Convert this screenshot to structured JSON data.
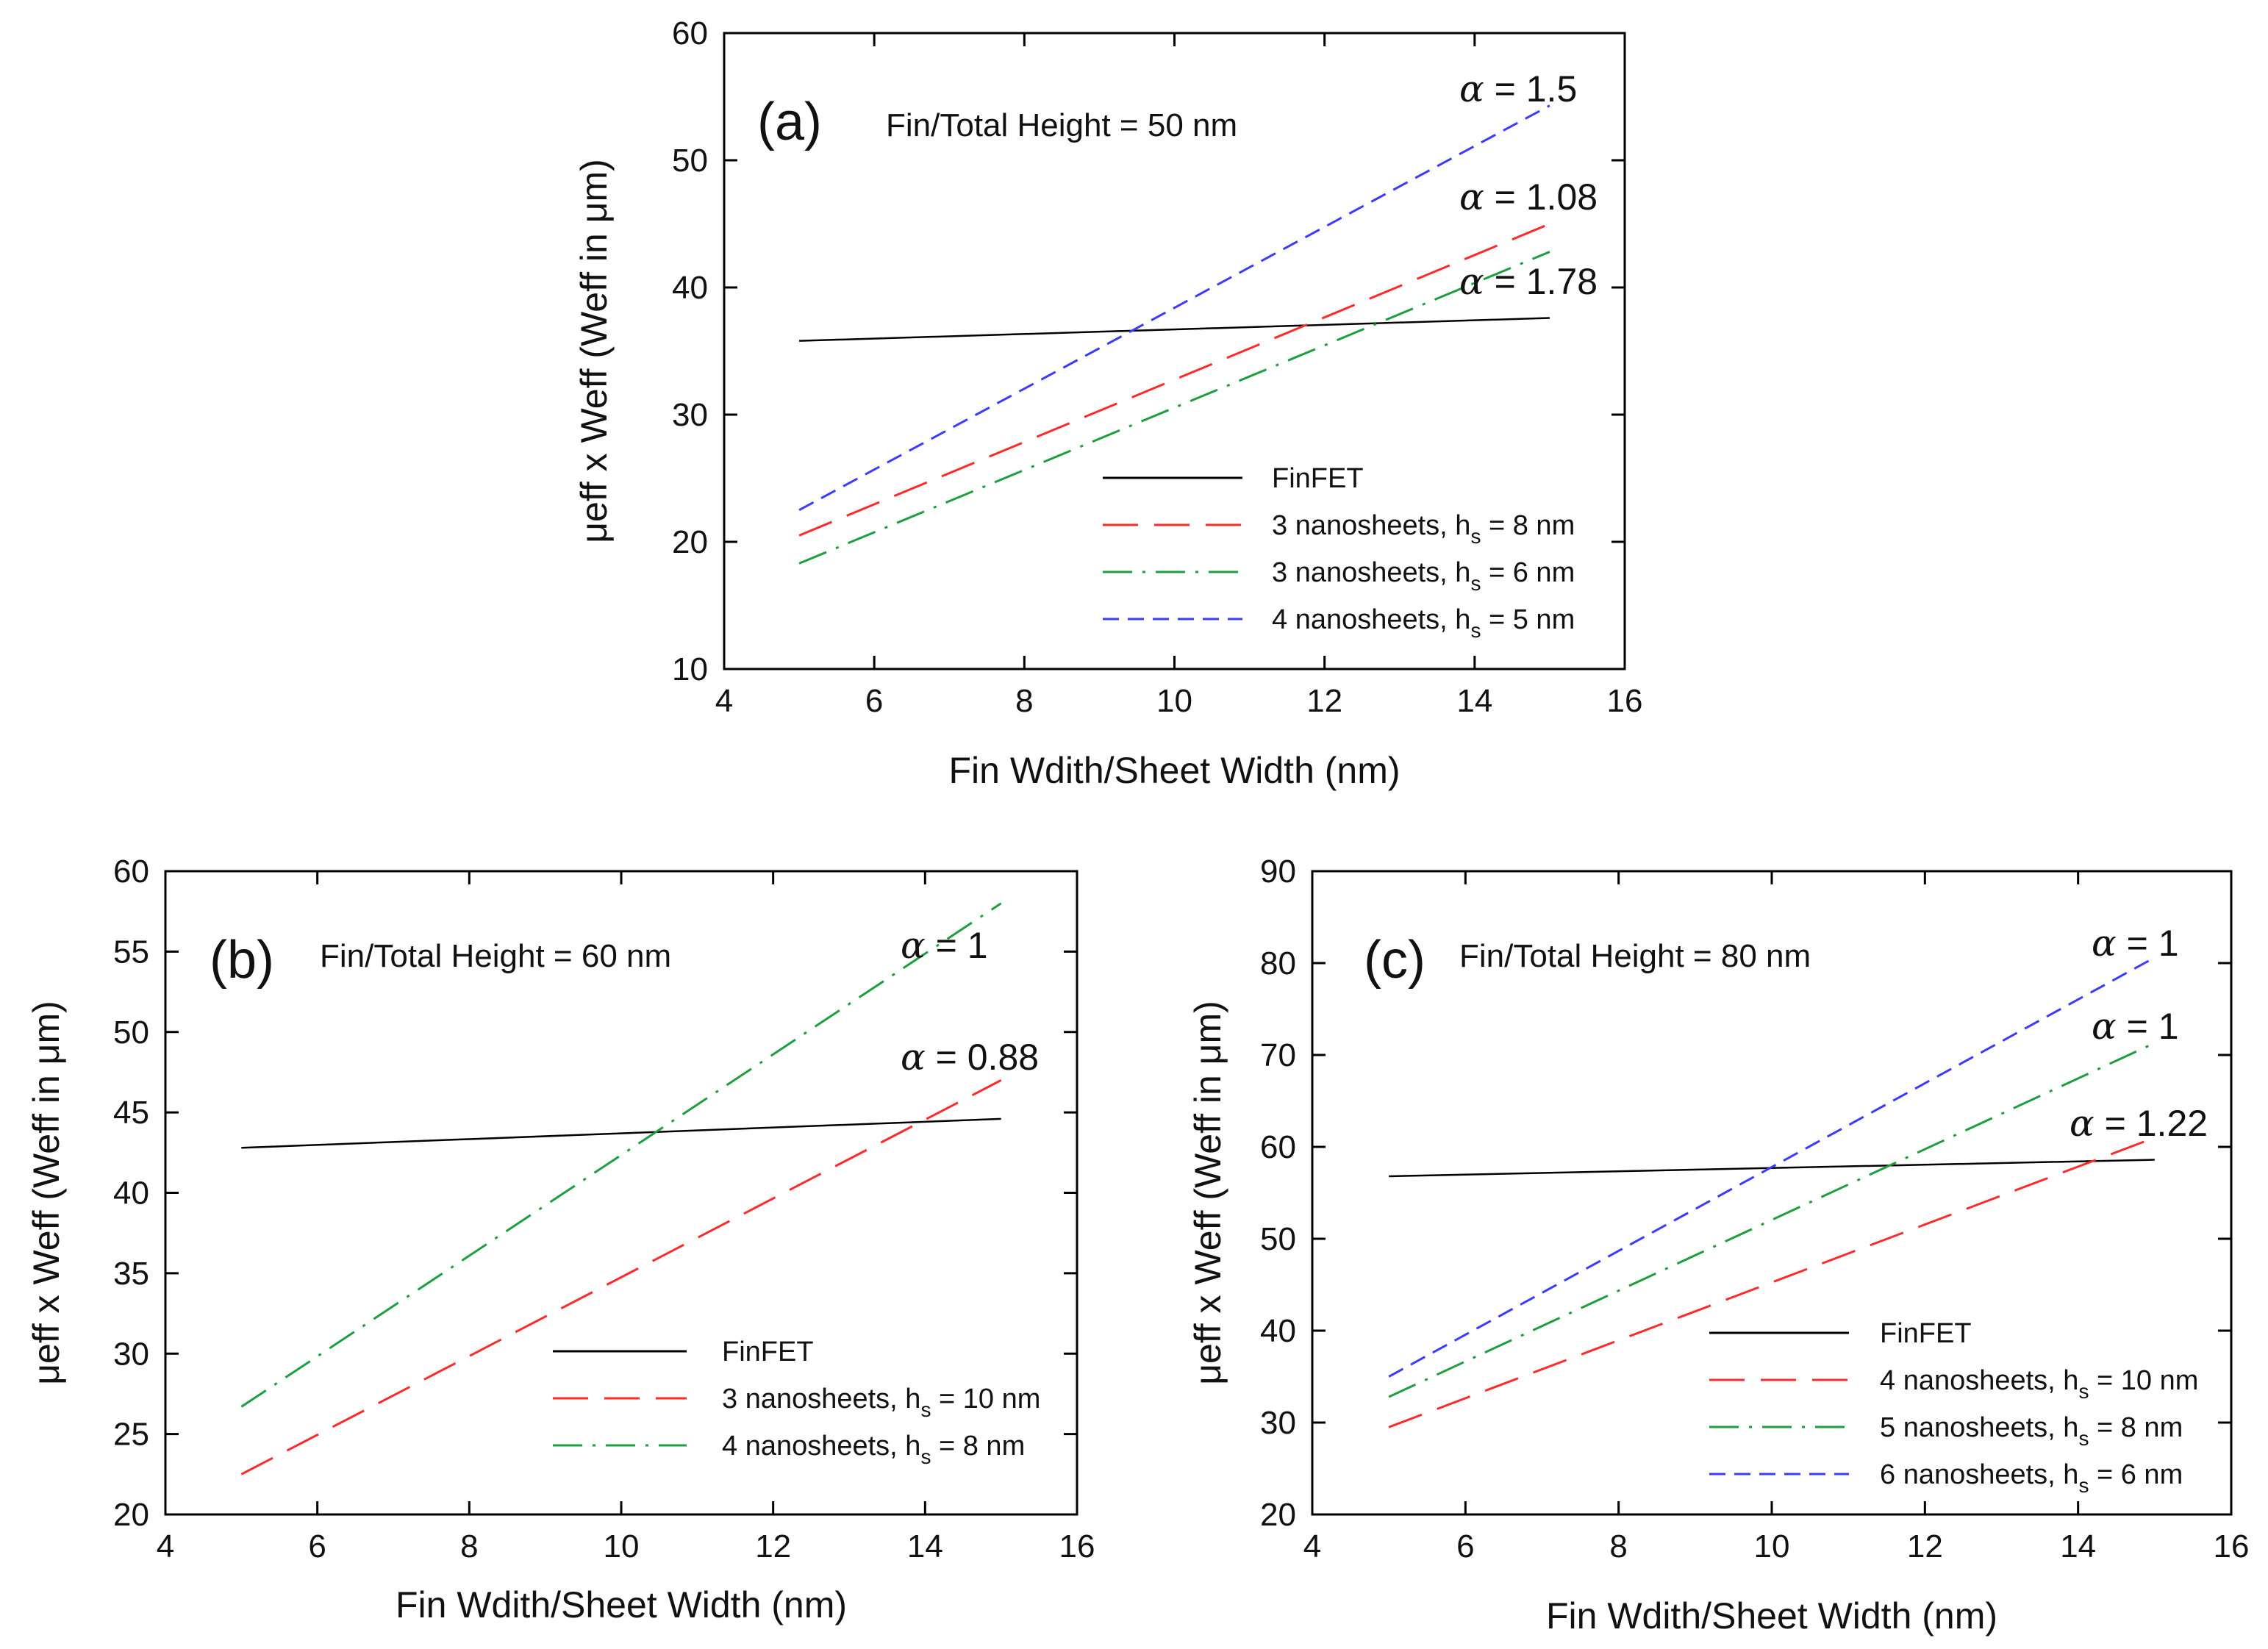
{
  "colors": {
    "finfet": "#000000",
    "red": "#ff2a2a",
    "green": "#1e9e3e",
    "blue": "#3b3bff",
    "axis": "#000000"
  },
  "chart_data": [
    {
      "type": "line",
      "panel": "(a)",
      "height_label": "Fin/Total Height = 50 nm",
      "xlabel": "Fin Wdith/Sheet Width (nm)",
      "ylabel": "μeff x Weff (Weff in μm)",
      "xlim": [
        4,
        16
      ],
      "ylim": [
        10,
        60
      ],
      "xticks": [
        4,
        6,
        8,
        10,
        12,
        14,
        16
      ],
      "yticks": [
        10,
        20,
        30,
        40,
        50,
        60
      ],
      "grid": false,
      "legend_position": "bottom-right",
      "series": [
        {
          "key": "finfet",
          "name": "FinFET",
          "x": [
            5,
            15
          ],
          "y": [
            35.8,
            37.6
          ],
          "color_key": "finfet",
          "dash": "solid"
        },
        {
          "key": "s2",
          "name": "3 nanosheets, h",
          "sub": "s",
          "name_tail": " = 8 nm",
          "x": [
            5,
            15
          ],
          "y": [
            20.5,
            45.0
          ],
          "color_key": "red",
          "dash": "long"
        },
        {
          "key": "s3",
          "name": "3 nanosheets, h",
          "sub": "s",
          "name_tail": " = 6 nm",
          "x": [
            5,
            15
          ],
          "y": [
            18.3,
            42.8
          ],
          "color_key": "green",
          "dash": "longdot"
        },
        {
          "key": "s4",
          "name": "4 nanosheets, h",
          "sub": "s",
          "name_tail": " = 5 nm",
          "x": [
            5,
            15
          ],
          "y": [
            22.5,
            54.3
          ],
          "color_key": "blue",
          "dash": "short"
        }
      ],
      "annotations": [
        {
          "symbol": "α",
          "text": " = 1.5",
          "series": "s4"
        },
        {
          "symbol": "α",
          "text": " = 1.08",
          "series": "s2"
        },
        {
          "symbol": "α",
          "text": " = 1.78",
          "series": "s3"
        }
      ]
    },
    {
      "type": "line",
      "panel": "(b)",
      "height_label": "Fin/Total Height = 60 nm",
      "xlabel": "Fin Wdith/Sheet Width (nm)",
      "ylabel": "μeff x Weff (Weff in μm)",
      "xlim": [
        4,
        16
      ],
      "ylim": [
        20,
        60
      ],
      "xticks": [
        4,
        6,
        8,
        10,
        12,
        14,
        16
      ],
      "yticks": [
        20,
        25,
        30,
        35,
        40,
        45,
        50,
        55,
        60
      ],
      "grid": false,
      "legend_position": "bottom-right",
      "series": [
        {
          "key": "finfet",
          "name": "FinFET",
          "x": [
            5,
            15
          ],
          "y": [
            42.8,
            44.6
          ],
          "color_key": "finfet",
          "dash": "solid"
        },
        {
          "key": "s2",
          "name": "3 nanosheets, h",
          "sub": "s",
          "name_tail": " = 10 nm",
          "x": [
            5,
            15
          ],
          "y": [
            22.5,
            47.0
          ],
          "color_key": "red",
          "dash": "long"
        },
        {
          "key": "s3",
          "name": "4 nanosheets, h",
          "sub": "s",
          "name_tail": " = 8 nm",
          "x": [
            5,
            15
          ],
          "y": [
            26.7,
            58.0
          ],
          "color_key": "green",
          "dash": "longdot"
        }
      ],
      "annotations": [
        {
          "symbol": "α",
          "text": " = 1",
          "series": "s3"
        },
        {
          "symbol": "α",
          "text": " = 0.88",
          "series": "s2"
        }
      ]
    },
    {
      "type": "line",
      "panel": "(c)",
      "height_label": "Fin/Total Height = 80 nm",
      "xlabel": "Fin Wdith/Sheet Width (nm)",
      "ylabel": "μeff x Weff (Weff in μm)",
      "xlim": [
        4,
        16
      ],
      "ylim": [
        20,
        90
      ],
      "xticks": [
        4,
        6,
        8,
        10,
        12,
        14,
        16
      ],
      "yticks": [
        20,
        30,
        40,
        50,
        60,
        70,
        80,
        90
      ],
      "grid": false,
      "legend_position": "bottom-right",
      "series": [
        {
          "key": "finfet",
          "name": "FinFET",
          "x": [
            5,
            15
          ],
          "y": [
            56.8,
            58.6
          ],
          "color_key": "finfet",
          "dash": "solid"
        },
        {
          "key": "s2",
          "name": "4 nanosheets, h",
          "sub": "s",
          "name_tail": " = 10 nm",
          "x": [
            5,
            15
          ],
          "y": [
            29.5,
            61.0
          ],
          "color_key": "red",
          "dash": "long"
        },
        {
          "key": "s3",
          "name": "5 nanosheets, h",
          "sub": "s",
          "name_tail": " = 8 nm",
          "x": [
            5,
            15
          ],
          "y": [
            32.8,
            71.3
          ],
          "color_key": "green",
          "dash": "longdot"
        },
        {
          "key": "s4",
          "name": "6 nanosheets, h",
          "sub": "s",
          "name_tail": " = 6 nm",
          "x": [
            5,
            15
          ],
          "y": [
            35.0,
            80.6
          ],
          "color_key": "blue",
          "dash": "short"
        }
      ],
      "annotations": [
        {
          "symbol": "α",
          "text": " = 1",
          "series": "s4"
        },
        {
          "symbol": "α",
          "text": " = 1",
          "series": "s3"
        },
        {
          "symbol": "α",
          "text": " = 1.22",
          "series": "s2"
        }
      ]
    }
  ]
}
